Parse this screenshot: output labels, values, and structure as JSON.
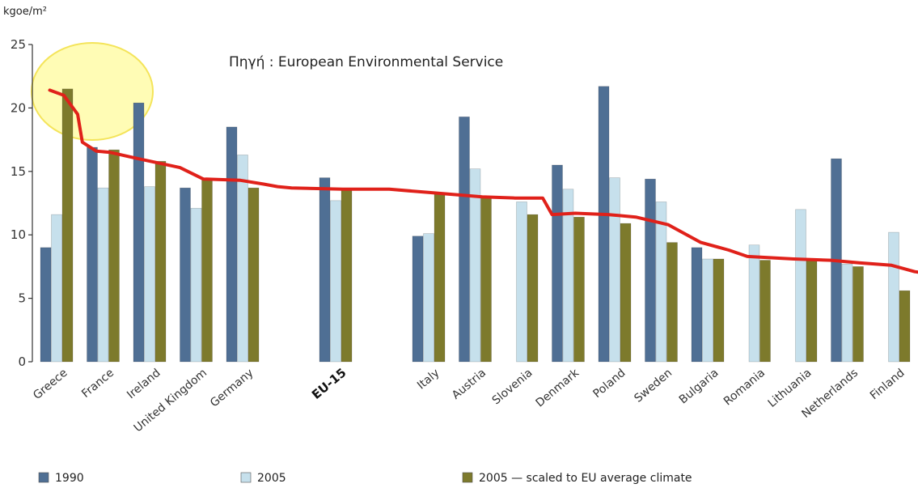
{
  "chart_data": {
    "type": "bar",
    "unit_label": "kgoe/m²",
    "source_note": "Πηγή : European Environmental Service",
    "ylim": [
      0,
      25
    ],
    "yticks": [
      0,
      5,
      10,
      15,
      20,
      25
    ],
    "categories": [
      "Greece",
      "France",
      "Ireland",
      "United Kingdom",
      "Germany",
      "",
      "EU-15",
      "",
      "Italy",
      "Austria",
      "Slovenia",
      "Denmark",
      "Poland",
      "Sweden",
      "Bulgaria",
      "Romania",
      "Lithuania",
      "Netherlands",
      "Finland"
    ],
    "bold_categories": [
      "EU-15"
    ],
    "series": [
      {
        "name": "1990",
        "color": "#4f6f94",
        "values": [
          9.0,
          16.9,
          20.4,
          13.7,
          18.5,
          null,
          14.5,
          null,
          9.9,
          19.3,
          null,
          15.5,
          21.7,
          14.4,
          9.0,
          null,
          null,
          16.0,
          null
        ]
      },
      {
        "name": "2005",
        "color": "#c6e0ec",
        "values": [
          11.6,
          13.7,
          13.8,
          12.1,
          16.3,
          null,
          12.7,
          null,
          10.1,
          15.2,
          12.6,
          13.6,
          14.5,
          12.6,
          8.1,
          9.2,
          12.0,
          7.7,
          10.2
        ]
      },
      {
        "name": "2005 — scaled to EU average climate",
        "color": "#7d7a2c",
        "values": [
          21.5,
          16.7,
          15.8,
          14.4,
          13.7,
          null,
          13.6,
          null,
          13.2,
          13.0,
          11.6,
          11.4,
          10.9,
          9.4,
          8.1,
          8.0,
          8.0,
          7.5,
          5.6
        ]
      }
    ],
    "trend_line": {
      "color": "#e0211a",
      "points": [
        [
          0.2,
          21.4
        ],
        [
          0.5,
          21.0
        ],
        [
          0.8,
          19.5
        ],
        [
          0.9,
          17.3
        ],
        [
          1.2,
          16.6
        ],
        [
          1.5,
          16.5
        ],
        [
          2.1,
          16.0
        ],
        [
          3.0,
          15.3
        ],
        [
          3.5,
          14.4
        ],
        [
          4.3,
          14.3
        ],
        [
          4.8,
          14.0
        ],
        [
          5.1,
          13.8
        ],
        [
          5.4,
          13.7
        ],
        [
          6.5,
          13.6
        ],
        [
          7.5,
          13.6
        ],
        [
          8.5,
          13.3
        ],
        [
          9.5,
          13.0
        ],
        [
          10.2,
          12.9
        ],
        [
          10.8,
          12.9
        ],
        [
          11.0,
          11.6
        ],
        [
          11.5,
          11.7
        ],
        [
          12.2,
          11.6
        ],
        [
          12.8,
          11.4
        ],
        [
          13.5,
          10.8
        ],
        [
          14.2,
          9.4
        ],
        [
          14.8,
          8.8
        ],
        [
          15.2,
          8.3
        ],
        [
          16.2,
          8.1
        ],
        [
          17.0,
          8.0
        ],
        [
          17.6,
          7.8
        ],
        [
          18.3,
          7.6
        ],
        [
          18.8,
          7.1
        ],
        [
          19.0,
          7.0
        ]
      ]
    },
    "highlight_circle": {
      "around_category": "Greece",
      "fill": "rgba(255,250,120,0.55)",
      "stroke": "#f4e45a"
    },
    "grid": false,
    "legend_position": "bottom"
  }
}
